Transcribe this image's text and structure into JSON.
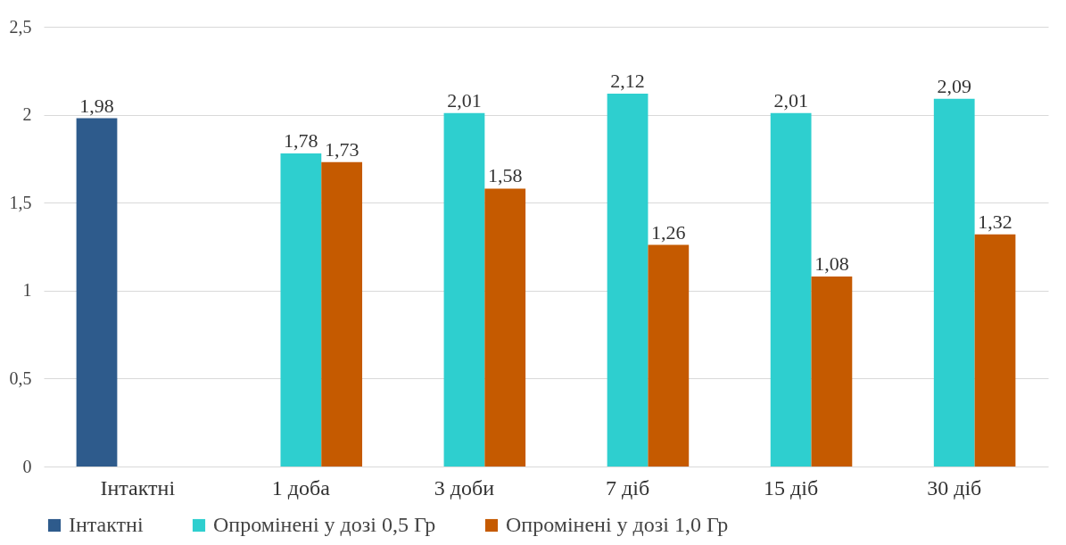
{
  "chart_data": {
    "type": "bar",
    "categories": [
      "Інтактні",
      "1 доба",
      "3 доби",
      "7 діб",
      "15 діб",
      "30 діб"
    ],
    "series": [
      {
        "name": "Інтактні",
        "color": "#2e5b8c",
        "values": [
          1.98,
          null,
          null,
          null,
          null,
          null
        ],
        "value_labels": [
          "1,98",
          null,
          null,
          null,
          null,
          null
        ]
      },
      {
        "name": "Опромінені у дозі 0,5 Гр",
        "color": "#2ecfcf",
        "values": [
          null,
          1.78,
          2.01,
          2.12,
          2.01,
          2.09
        ],
        "value_labels": [
          null,
          "1,78",
          "2,01",
          "2,12",
          "2,01",
          "2,09"
        ]
      },
      {
        "name": "Опромінені у дозі 1,0 Гр",
        "color": "#c55a00",
        "values": [
          null,
          1.73,
          1.58,
          1.26,
          1.08,
          1.32
        ],
        "value_labels": [
          null,
          "1,73",
          "1,58",
          "1,26",
          "1,08",
          "1,32"
        ]
      }
    ],
    "ylim": [
      0,
      2.5
    ],
    "yticks": [
      0,
      {
        "value": 0.5,
        "label": "0,5"
      },
      1,
      {
        "value": 1.5,
        "label": "1,5"
      },
      2,
      {
        "value": 2.5,
        "label": "2,5"
      }
    ],
    "grid": "y",
    "legend": "bottom"
  }
}
